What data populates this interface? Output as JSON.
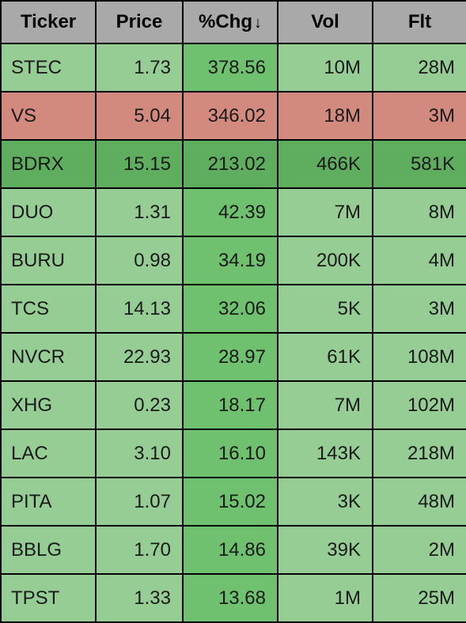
{
  "headers": {
    "ticker": "Ticker",
    "price": "Price",
    "chg": "%Chg",
    "vol": "Vol",
    "flt": "Flt"
  },
  "sort_indicator": "↓",
  "colors": {
    "header_bg": "#a9a9a9",
    "row_green_light": "#95cd95",
    "row_green_dark": "#5fae5f",
    "chg_green": "#6fc06f",
    "chg_green_dark": "#5fae5f",
    "row_red": "#d2897e",
    "border": "#000000",
    "text": "#1a1a1a"
  },
  "rows": [
    {
      "ticker": "STEC",
      "price": "1.73",
      "chg": "378.56",
      "vol": "10M",
      "flt": "28M",
      "row_bg": "#95cd95",
      "chg_bg": "#6fc06f"
    },
    {
      "ticker": "VS",
      "price": "5.04",
      "chg": "346.02",
      "vol": "18M",
      "flt": "3M",
      "row_bg": "#d2897e",
      "chg_bg": "#d2897e"
    },
    {
      "ticker": "BDRX",
      "price": "15.15",
      "chg": "213.02",
      "vol": "466K",
      "flt": "581K",
      "row_bg": "#5fae5f",
      "chg_bg": "#5fae5f"
    },
    {
      "ticker": "DUO",
      "price": "1.31",
      "chg": "42.39",
      "vol": "7M",
      "flt": "8M",
      "row_bg": "#95cd95",
      "chg_bg": "#6fc06f"
    },
    {
      "ticker": "BURU",
      "price": "0.98",
      "chg": "34.19",
      "vol": "200K",
      "flt": "4M",
      "row_bg": "#95cd95",
      "chg_bg": "#6fc06f"
    },
    {
      "ticker": "TCS",
      "price": "14.13",
      "chg": "32.06",
      "vol": "5K",
      "flt": "3M",
      "row_bg": "#95cd95",
      "chg_bg": "#6fc06f"
    },
    {
      "ticker": "NVCR",
      "price": "22.93",
      "chg": "28.97",
      "vol": "61K",
      "flt": "108M",
      "row_bg": "#95cd95",
      "chg_bg": "#6fc06f"
    },
    {
      "ticker": "XHG",
      "price": "0.23",
      "chg": "18.17",
      "vol": "7M",
      "flt": "102M",
      "row_bg": "#95cd95",
      "chg_bg": "#6fc06f"
    },
    {
      "ticker": "LAC",
      "price": "3.10",
      "chg": "16.10",
      "vol": "143K",
      "flt": "218M",
      "row_bg": "#95cd95",
      "chg_bg": "#6fc06f"
    },
    {
      "ticker": "PITA",
      "price": "1.07",
      "chg": "15.02",
      "vol": "3K",
      "flt": "48M",
      "row_bg": "#95cd95",
      "chg_bg": "#6fc06f"
    },
    {
      "ticker": "BBLG",
      "price": "1.70",
      "chg": "14.86",
      "vol": "39K",
      "flt": "2M",
      "row_bg": "#95cd95",
      "chg_bg": "#6fc06f"
    },
    {
      "ticker": "TPST",
      "price": "1.33",
      "chg": "13.68",
      "vol": "1M",
      "flt": "25M",
      "row_bg": "#95cd95",
      "chg_bg": "#6fc06f"
    }
  ]
}
